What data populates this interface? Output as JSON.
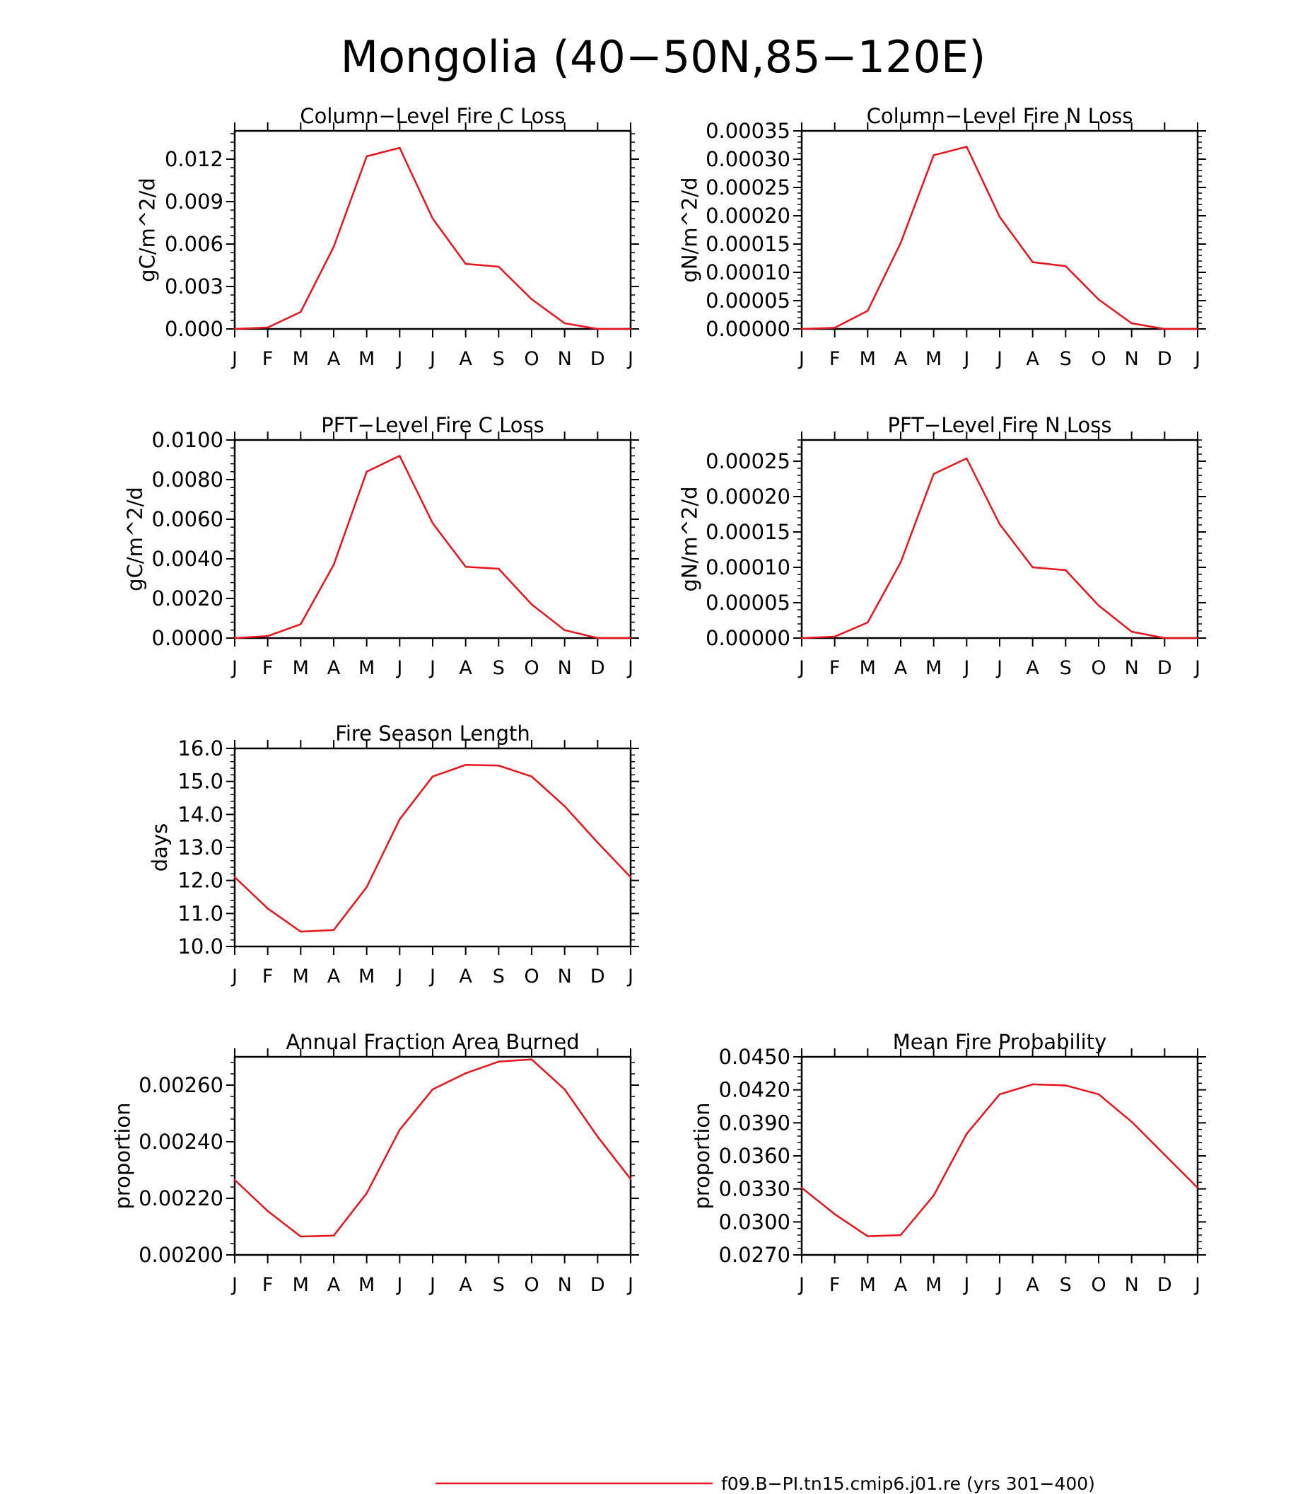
{
  "page": {
    "title": "Mongolia (40−50N,85−120E)"
  },
  "chart_data": [
    {
      "type": "line",
      "title": "Column−Level Fire C Loss",
      "xlabel": "",
      "ylabel": "gC/m^2/d",
      "categories": [
        "J",
        "F",
        "M",
        "A",
        "M",
        "J",
        "J",
        "A",
        "S",
        "O",
        "N",
        "D",
        "J"
      ],
      "ylim": [
        0,
        0.014
      ],
      "yticks": [
        "0.000",
        "0.003",
        "0.006",
        "0.009",
        "0.012"
      ],
      "ytick_values": [
        0,
        0.003,
        0.006,
        0.009,
        0.012
      ],
      "series": [
        {
          "color": "#e8141c",
          "values": [
            0.0,
            0.0001,
            0.0012,
            0.0058,
            0.0122,
            0.0128,
            0.0078,
            0.0046,
            0.0044,
            0.0021,
            0.0004,
            0.0,
            0.0
          ]
        }
      ]
    },
    {
      "type": "line",
      "title": "Column−Level Fire N Loss",
      "xlabel": "",
      "ylabel": "gN/m^2/d",
      "categories": [
        "J",
        "F",
        "M",
        "A",
        "M",
        "J",
        "J",
        "A",
        "S",
        "O",
        "N",
        "D",
        "J"
      ],
      "ylim": [
        0,
        0.00035
      ],
      "yticks": [
        "0.00000",
        "0.00005",
        "0.00010",
        "0.00015",
        "0.00020",
        "0.00025",
        "0.00030",
        "0.00035"
      ],
      "ytick_values": [
        0,
        5e-05,
        0.0001,
        0.00015,
        0.0002,
        0.00025,
        0.0003,
        0.00035
      ],
      "series": [
        {
          "color": "#e8141c",
          "values": [
            0.0,
            2e-06,
            3.2e-05,
            0.000152,
            0.000307,
            0.000322,
            0.000198,
            0.000118,
            0.000111,
            5.2e-05,
            1e-05,
            0.0,
            0.0
          ]
        }
      ]
    },
    {
      "type": "line",
      "title": "PFT−Level Fire C Loss",
      "xlabel": "",
      "ylabel": "gC/m^2/d",
      "categories": [
        "J",
        "F",
        "M",
        "A",
        "M",
        "J",
        "J",
        "A",
        "S",
        "O",
        "N",
        "D",
        "J"
      ],
      "ylim": [
        0,
        0.01
      ],
      "yticks": [
        "0.0000",
        "0.0020",
        "0.0040",
        "0.0060",
        "0.0080",
        "0.0100"
      ],
      "ytick_values": [
        0,
        0.002,
        0.004,
        0.006,
        0.008,
        0.01
      ],
      "series": [
        {
          "color": "#e8141c",
          "values": [
            0.0,
            0.0001,
            0.0007,
            0.0037,
            0.0084,
            0.0092,
            0.0058,
            0.0036,
            0.0035,
            0.0017,
            0.0004,
            0.0,
            0.0
          ]
        }
      ]
    },
    {
      "type": "line",
      "title": "PFT−Level Fire N Loss",
      "xlabel": "",
      "ylabel": "gN/m^2/d",
      "categories": [
        "J",
        "F",
        "M",
        "A",
        "M",
        "J",
        "J",
        "A",
        "S",
        "O",
        "N",
        "D",
        "J"
      ],
      "ylim": [
        0,
        0.00028
      ],
      "yticks": [
        "0.00000",
        "0.00005",
        "0.00010",
        "0.00015",
        "0.00020",
        "0.00025"
      ],
      "ytick_values": [
        0,
        5e-05,
        0.0001,
        0.00015,
        0.0002,
        0.00025
      ],
      "series": [
        {
          "color": "#e8141c",
          "values": [
            0.0,
            2e-06,
            2.2e-05,
            0.000107,
            0.000232,
            0.000254,
            0.000161,
            0.0001,
            9.6e-05,
            4.6e-05,
            9e-06,
            0.0,
            0.0
          ]
        }
      ]
    },
    {
      "type": "line",
      "title": "Fire Season Length",
      "xlabel": "",
      "ylabel": "days",
      "categories": [
        "J",
        "F",
        "M",
        "A",
        "M",
        "J",
        "J",
        "A",
        "S",
        "O",
        "N",
        "D",
        "J"
      ],
      "ylim": [
        10,
        16
      ],
      "yticks": [
        "10.0",
        "11.0",
        "12.0",
        "13.0",
        "14.0",
        "15.0",
        "16.0"
      ],
      "ytick_values": [
        10,
        11,
        12,
        13,
        14,
        15,
        16
      ],
      "series": [
        {
          "color": "#e8141c",
          "values": [
            12.1,
            11.15,
            10.45,
            10.5,
            11.8,
            13.85,
            15.15,
            15.5,
            15.48,
            15.15,
            14.25,
            13.15,
            12.1
          ]
        }
      ]
    },
    {
      "type": "line",
      "title": "Annual Fraction Area Burned",
      "xlabel": "",
      "ylabel": "proportion",
      "categories": [
        "J",
        "F",
        "M",
        "A",
        "M",
        "J",
        "J",
        "A",
        "S",
        "O",
        "N",
        "D",
        "J"
      ],
      "ylim": [
        0.002,
        0.0027
      ],
      "yticks": [
        "0.00200",
        "0.00220",
        "0.00240",
        "0.00260"
      ],
      "ytick_values": [
        0.002,
        0.0022,
        0.0024,
        0.0026
      ],
      "series": [
        {
          "color": "#e8141c",
          "values": [
            0.002265,
            0.002155,
            0.002065,
            0.002068,
            0.002218,
            0.002442,
            0.002585,
            0.002642,
            0.002683,
            0.002691,
            0.002585,
            0.002418,
            0.002268
          ]
        }
      ]
    },
    {
      "type": "line",
      "title": "Mean Fire Probability",
      "xlabel": "",
      "ylabel": "proportion",
      "categories": [
        "J",
        "F",
        "M",
        "A",
        "M",
        "J",
        "J",
        "A",
        "S",
        "O",
        "N",
        "D",
        "J"
      ],
      "ylim": [
        0.027,
        0.045
      ],
      "yticks": [
        "0.0270",
        "0.0300",
        "0.0330",
        "0.0360",
        "0.0390",
        "0.0420",
        "0.0450"
      ],
      "ytick_values": [
        0.027,
        0.03,
        0.033,
        0.036,
        0.039,
        0.042,
        0.045
      ],
      "series": [
        {
          "color": "#e8141c",
          "values": [
            0.0331,
            0.0307,
            0.0287,
            0.0288,
            0.0324,
            0.038,
            0.0416,
            0.0425,
            0.0424,
            0.0416,
            0.0391,
            0.0361,
            0.0331
          ]
        }
      ]
    }
  ],
  "legend": {
    "label": "f09.B−PI.tn15.cmip6.j01.re (yrs 301−400)",
    "color": "#e8141c"
  }
}
